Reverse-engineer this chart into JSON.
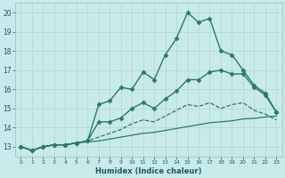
{
  "xlabel": "Humidex (Indice chaleur)",
  "background_color": "#c8eaea",
  "grid_color": "#b0d4d4",
  "line_color": "#2a7a6a",
  "xlim": [
    -0.5,
    23.5
  ],
  "ylim": [
    12.5,
    20.5
  ],
  "xticks": [
    0,
    1,
    2,
    3,
    4,
    5,
    6,
    7,
    8,
    9,
    10,
    11,
    12,
    13,
    14,
    15,
    16,
    17,
    18,
    19,
    20,
    21,
    22,
    23
  ],
  "yticks": [
    13,
    14,
    15,
    16,
    17,
    18,
    19,
    20
  ],
  "series": [
    {
      "x": [
        0,
        1,
        2,
        3,
        4,
        5,
        6,
        7,
        8,
        9,
        10,
        11,
        12,
        13,
        14,
        15,
        16,
        17,
        18,
        19,
        20,
        21,
        22,
        23
      ],
      "y": [
        13.0,
        12.8,
        13.0,
        13.1,
        13.1,
        13.2,
        13.3,
        15.2,
        15.4,
        16.1,
        16.0,
        16.9,
        16.5,
        17.8,
        18.65,
        20.0,
        19.5,
        19.7,
        18.0,
        17.8,
        17.0,
        16.2,
        15.8,
        14.8
      ],
      "marker": "D",
      "markersize": 2.5,
      "linewidth": 1.0,
      "linestyle": "-"
    },
    {
      "x": [
        0,
        1,
        2,
        3,
        4,
        5,
        6,
        7,
        8,
        9,
        10,
        11,
        12,
        13,
        14,
        15,
        16,
        17,
        18,
        19,
        20,
        21,
        22,
        23
      ],
      "y": [
        13.0,
        12.8,
        13.0,
        13.1,
        13.1,
        13.2,
        13.3,
        14.3,
        14.3,
        14.5,
        15.0,
        15.3,
        15.0,
        15.5,
        15.9,
        16.5,
        16.5,
        16.9,
        17.0,
        16.8,
        16.8,
        16.1,
        15.7,
        14.8
      ],
      "marker": "D",
      "markersize": 2.5,
      "linewidth": 1.0,
      "linestyle": "-"
    },
    {
      "x": [
        0,
        1,
        2,
        3,
        4,
        5,
        6,
        7,
        8,
        9,
        10,
        11,
        12,
        13,
        14,
        15,
        16,
        17,
        18,
        19,
        20,
        21,
        22,
        23
      ],
      "y": [
        13.0,
        12.8,
        13.0,
        13.1,
        13.1,
        13.2,
        13.3,
        13.5,
        13.7,
        13.9,
        14.2,
        14.4,
        14.3,
        14.6,
        14.9,
        15.2,
        15.1,
        15.3,
        15.0,
        15.2,
        15.3,
        14.9,
        14.7,
        14.4
      ],
      "marker": null,
      "markersize": 0,
      "linewidth": 0.9,
      "linestyle": "--"
    },
    {
      "x": [
        0,
        1,
        2,
        3,
        4,
        5,
        6,
        7,
        8,
        9,
        10,
        11,
        12,
        13,
        14,
        15,
        16,
        17,
        18,
        19,
        20,
        21,
        22,
        23
      ],
      "y": [
        13.0,
        12.8,
        13.0,
        13.1,
        13.1,
        13.2,
        13.25,
        13.3,
        13.4,
        13.5,
        13.6,
        13.7,
        13.75,
        13.85,
        13.95,
        14.05,
        14.15,
        14.25,
        14.3,
        14.35,
        14.45,
        14.48,
        14.55,
        14.6
      ],
      "marker": null,
      "markersize": 0,
      "linewidth": 0.9,
      "linestyle": "-"
    }
  ]
}
